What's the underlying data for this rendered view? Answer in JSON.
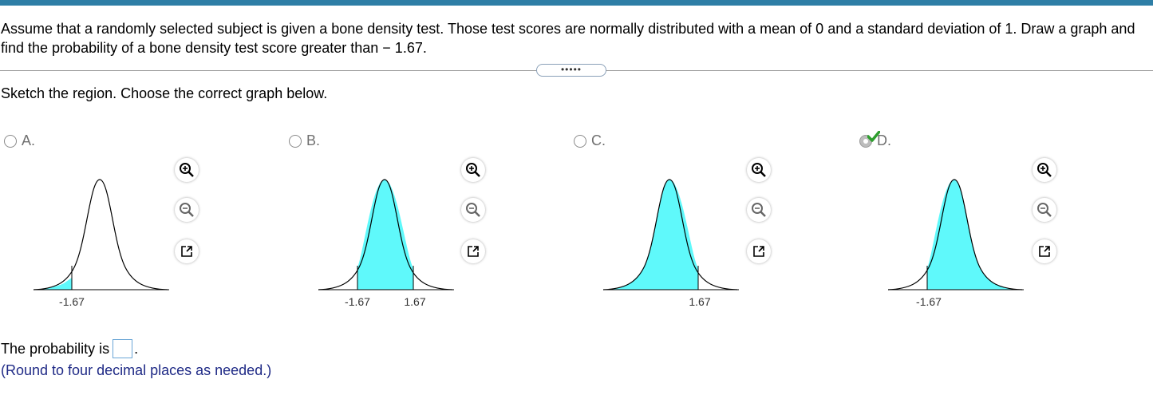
{
  "question": {
    "text": "Assume that a randomly selected subject is given a bone density test. Those test scores are normally distributed with a mean of 0 and a standard deviation of 1. Draw a graph and find the probability of a bone density test score greater than − 1.67."
  },
  "expand_button": {
    "label": "•••••"
  },
  "instruction": "Sketch the region. Choose the correct graph below.",
  "options": [
    {
      "letter": "A.",
      "selected": false,
      "shading": "left tail below -1.67",
      "tick_labels": [
        "-1.67"
      ]
    },
    {
      "letter": "B.",
      "selected": false,
      "shading": "between -1.67 and 1.67",
      "tick_labels": [
        "-1.67",
        "1.67"
      ]
    },
    {
      "letter": "C.",
      "selected": false,
      "shading": "below 1.67",
      "tick_labels": [
        "1.67"
      ]
    },
    {
      "letter": "D.",
      "selected": true,
      "shading": "above -1.67",
      "tick_labels": [
        "-1.67"
      ]
    }
  ],
  "tools": {
    "zoom_in": "zoom-in-icon",
    "zoom_out": "zoom-out-icon",
    "open_new": "open-in-new-window-icon"
  },
  "answer": {
    "prefix": "The probability is",
    "value": "",
    "suffix": "."
  },
  "hint": "(Round to four decimal places as needed.)",
  "colors": {
    "fill": "#5ff9fb",
    "topbar": "#2e7ea6",
    "check": "#2e9e2e",
    "hint": "#1f2a86"
  }
}
